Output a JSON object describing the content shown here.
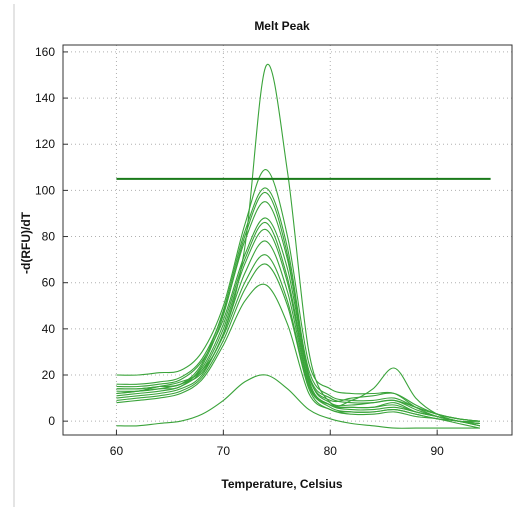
{
  "chart_data": {
    "type": "line",
    "title": "Melt Peak",
    "xlabel": "Temperature, Celsius",
    "ylabel": "-d(RFU)/dT",
    "xlim": [
      55,
      97
    ],
    "ylim": [
      -6,
      163
    ],
    "xticks": [
      60,
      70,
      80,
      90
    ],
    "yticks": [
      0,
      20,
      40,
      60,
      80,
      100,
      120,
      140,
      160
    ],
    "grid": true,
    "threshold": 105,
    "colors": {
      "curve": "#3aa33a",
      "threshold": "#1a7a1a",
      "axis": "#333333",
      "grid": "#b0b0b0"
    },
    "series": [
      {
        "values": [
          [
            60,
            12
          ],
          [
            62,
            13
          ],
          [
            64,
            15
          ],
          [
            66,
            17
          ],
          [
            68,
            22
          ],
          [
            70,
            38
          ],
          [
            72,
            75
          ],
          [
            74,
            154
          ],
          [
            76,
            108
          ],
          [
            78,
            30
          ],
          [
            80,
            8
          ],
          [
            82,
            9
          ],
          [
            84,
            14
          ],
          [
            86,
            23
          ],
          [
            88,
            10
          ],
          [
            90,
            3
          ],
          [
            92,
            0
          ],
          [
            94,
            -1
          ]
        ]
      },
      {
        "values": [
          [
            60,
            20
          ],
          [
            62,
            20
          ],
          [
            64,
            21
          ],
          [
            66,
            22
          ],
          [
            68,
            30
          ],
          [
            70,
            50
          ],
          [
            72,
            85
          ],
          [
            74,
            109
          ],
          [
            76,
            80
          ],
          [
            78,
            25
          ],
          [
            80,
            14
          ],
          [
            82,
            12
          ],
          [
            84,
            12
          ],
          [
            86,
            12
          ],
          [
            88,
            6
          ],
          [
            90,
            2
          ],
          [
            92,
            0
          ],
          [
            94,
            0
          ]
        ]
      },
      {
        "values": [
          [
            60,
            14
          ],
          [
            62,
            14
          ],
          [
            64,
            15
          ],
          [
            66,
            16
          ],
          [
            68,
            25
          ],
          [
            70,
            48
          ],
          [
            72,
            82
          ],
          [
            74,
            101
          ],
          [
            76,
            75
          ],
          [
            78,
            20
          ],
          [
            80,
            8
          ],
          [
            82,
            7
          ],
          [
            84,
            8
          ],
          [
            86,
            9
          ],
          [
            88,
            5
          ],
          [
            90,
            2
          ],
          [
            92,
            0
          ],
          [
            94,
            -1
          ]
        ]
      },
      {
        "values": [
          [
            60,
            12
          ],
          [
            62,
            13
          ],
          [
            64,
            14
          ],
          [
            66,
            15
          ],
          [
            68,
            24
          ],
          [
            70,
            46
          ],
          [
            72,
            80
          ],
          [
            74,
            99
          ],
          [
            76,
            72
          ],
          [
            78,
            18
          ],
          [
            80,
            7
          ],
          [
            82,
            6
          ],
          [
            84,
            6
          ],
          [
            86,
            8
          ],
          [
            88,
            4
          ],
          [
            90,
            2
          ],
          [
            92,
            0
          ],
          [
            94,
            -2
          ]
        ]
      },
      {
        "values": [
          [
            60,
            15
          ],
          [
            62,
            15
          ],
          [
            64,
            16
          ],
          [
            66,
            18
          ],
          [
            68,
            26
          ],
          [
            70,
            44
          ],
          [
            72,
            72
          ],
          [
            74,
            88
          ],
          [
            76,
            66
          ],
          [
            78,
            20
          ],
          [
            80,
            10
          ],
          [
            82,
            8
          ],
          [
            84,
            8
          ],
          [
            86,
            9
          ],
          [
            88,
            6
          ],
          [
            90,
            3
          ],
          [
            92,
            1
          ],
          [
            94,
            0
          ]
        ]
      },
      {
        "values": [
          [
            60,
            11
          ],
          [
            62,
            12
          ],
          [
            64,
            13
          ],
          [
            66,
            15
          ],
          [
            68,
            22
          ],
          [
            70,
            40
          ],
          [
            72,
            68
          ],
          [
            74,
            83
          ],
          [
            76,
            60
          ],
          [
            78,
            17
          ],
          [
            80,
            7
          ],
          [
            82,
            5
          ],
          [
            84,
            5
          ],
          [
            86,
            6
          ],
          [
            88,
            4
          ],
          [
            90,
            2
          ],
          [
            92,
            0
          ],
          [
            94,
            -1
          ]
        ]
      },
      {
        "values": [
          [
            60,
            10
          ],
          [
            62,
            11
          ],
          [
            64,
            12
          ],
          [
            66,
            14
          ],
          [
            68,
            20
          ],
          [
            70,
            38
          ],
          [
            72,
            64
          ],
          [
            74,
            78
          ],
          [
            76,
            56
          ],
          [
            78,
            16
          ],
          [
            80,
            6
          ],
          [
            82,
            4
          ],
          [
            84,
            4
          ],
          [
            86,
            5
          ],
          [
            88,
            3
          ],
          [
            90,
            1
          ],
          [
            92,
            0
          ],
          [
            94,
            -2
          ]
        ]
      },
      {
        "values": [
          [
            60,
            13
          ],
          [
            62,
            13
          ],
          [
            64,
            14
          ],
          [
            66,
            16
          ],
          [
            68,
            21
          ],
          [
            70,
            37
          ],
          [
            72,
            60
          ],
          [
            74,
            72
          ],
          [
            76,
            52
          ],
          [
            78,
            15
          ],
          [
            80,
            7
          ],
          [
            82,
            6
          ],
          [
            84,
            6
          ],
          [
            86,
            7
          ],
          [
            88,
            4
          ],
          [
            90,
            2
          ],
          [
            92,
            0
          ],
          [
            94,
            -1
          ]
        ]
      },
      {
        "values": [
          [
            60,
            9
          ],
          [
            62,
            10
          ],
          [
            64,
            11
          ],
          [
            66,
            13
          ],
          [
            68,
            19
          ],
          [
            70,
            35
          ],
          [
            72,
            57
          ],
          [
            74,
            68
          ],
          [
            76,
            50
          ],
          [
            78,
            14
          ],
          [
            80,
            5
          ],
          [
            82,
            4
          ],
          [
            84,
            4
          ],
          [
            86,
            5
          ],
          [
            88,
            3
          ],
          [
            90,
            1
          ],
          [
            92,
            0
          ],
          [
            94,
            -2
          ]
        ]
      },
      {
        "values": [
          [
            60,
            8
          ],
          [
            62,
            9
          ],
          [
            64,
            10
          ],
          [
            66,
            12
          ],
          [
            68,
            18
          ],
          [
            70,
            33
          ],
          [
            72,
            52
          ],
          [
            74,
            59
          ],
          [
            76,
            42
          ],
          [
            78,
            12
          ],
          [
            80,
            5
          ],
          [
            82,
            3
          ],
          [
            84,
            3
          ],
          [
            86,
            4
          ],
          [
            88,
            2
          ],
          [
            90,
            1
          ],
          [
            92,
            -1
          ],
          [
            94,
            -3
          ]
        ]
      },
      {
        "values": [
          [
            60,
            14
          ],
          [
            62,
            14
          ],
          [
            64,
            15
          ],
          [
            66,
            16
          ],
          [
            68,
            23
          ],
          [
            70,
            42
          ],
          [
            72,
            70
          ],
          [
            74,
            86
          ],
          [
            76,
            62
          ],
          [
            78,
            19
          ],
          [
            80,
            9
          ],
          [
            82,
            10
          ],
          [
            84,
            11
          ],
          [
            86,
            12
          ],
          [
            88,
            7
          ],
          [
            90,
            3
          ],
          [
            92,
            1
          ],
          [
            94,
            0
          ]
        ]
      },
      {
        "values": [
          [
            60,
            16
          ],
          [
            62,
            16
          ],
          [
            64,
            17
          ],
          [
            66,
            19
          ],
          [
            68,
            27
          ],
          [
            70,
            47
          ],
          [
            72,
            78
          ],
          [
            74,
            95
          ],
          [
            76,
            70
          ],
          [
            78,
            22
          ],
          [
            80,
            11
          ],
          [
            82,
            9
          ],
          [
            84,
            9
          ],
          [
            86,
            10
          ],
          [
            88,
            6
          ],
          [
            90,
            3
          ],
          [
            92,
            1
          ],
          [
            94,
            0
          ]
        ]
      },
      {
        "values": [
          [
            60,
            -2
          ],
          [
            62,
            -2
          ],
          [
            64,
            -1
          ],
          [
            66,
            0
          ],
          [
            68,
            3
          ],
          [
            70,
            9
          ],
          [
            72,
            17
          ],
          [
            74,
            20
          ],
          [
            76,
            14
          ],
          [
            78,
            5
          ],
          [
            80,
            1
          ],
          [
            82,
            -1
          ],
          [
            84,
            -2
          ],
          [
            86,
            -3
          ],
          [
            88,
            -3
          ],
          [
            90,
            -3
          ],
          [
            92,
            -3
          ],
          [
            94,
            -3
          ]
        ]
      }
    ]
  }
}
